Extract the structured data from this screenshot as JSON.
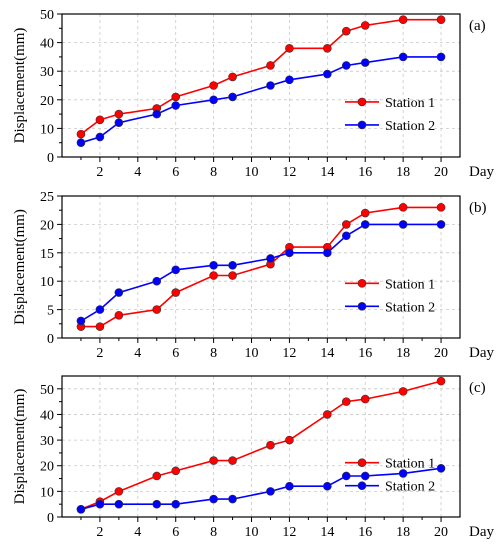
{
  "chart_data": [
    {
      "type": "line",
      "panel_label": "(a)",
      "ylabel": "Displacement(mm)",
      "xlabel": "Day",
      "xlim": [
        0,
        21
      ],
      "ylim": [
        0,
        50
      ],
      "xticks": [
        2,
        4,
        6,
        8,
        10,
        12,
        14,
        16,
        18,
        20
      ],
      "yticks": [
        0,
        10,
        20,
        30,
        40,
        50
      ],
      "grid": true,
      "legend_position": "center-right",
      "series": [
        {
          "name": "Station 1",
          "color": "#ff0000",
          "x": [
            1,
            2,
            3,
            5,
            6,
            8,
            9,
            11,
            12,
            14,
            15,
            16,
            18,
            20
          ],
          "y": [
            8,
            13,
            15,
            17,
            21,
            25,
            28,
            32,
            38,
            38,
            44,
            46,
            48,
            48
          ]
        },
        {
          "name": "Station 2",
          "color": "#0000ff",
          "x": [
            1,
            2,
            3,
            5,
            6,
            8,
            9,
            11,
            12,
            14,
            15,
            16,
            18,
            20
          ],
          "y": [
            5,
            7,
            12,
            15,
            18,
            20,
            21,
            25,
            27,
            29,
            32,
            33,
            35,
            35
          ]
        }
      ]
    },
    {
      "type": "line",
      "panel_label": "(b)",
      "ylabel": "Displacement(mm)",
      "xlabel": "Day",
      "xlim": [
        0,
        21
      ],
      "ylim": [
        0,
        25
      ],
      "xticks": [
        2,
        4,
        6,
        8,
        10,
        12,
        14,
        16,
        18,
        20
      ],
      "yticks": [
        0,
        5,
        10,
        15,
        20,
        25
      ],
      "grid": true,
      "legend_position": "center-right",
      "series": [
        {
          "name": "Station 1",
          "color": "#ff0000",
          "x": [
            1,
            2,
            3,
            5,
            6,
            8,
            9,
            11,
            12,
            14,
            15,
            16,
            18,
            20
          ],
          "y": [
            2,
            2,
            4,
            5,
            8,
            11,
            11,
            13,
            16,
            16,
            20,
            22,
            23,
            23
          ]
        },
        {
          "name": "Station 2",
          "color": "#0000ff",
          "x": [
            1,
            2,
            3,
            5,
            6,
            8,
            9,
            11,
            12,
            14,
            15,
            16,
            18,
            20
          ],
          "y": [
            3,
            5,
            8,
            10,
            12,
            12.8,
            12.8,
            14,
            15,
            15,
            18,
            20,
            20,
            20
          ]
        }
      ]
    },
    {
      "type": "line",
      "panel_label": "(c)",
      "ylabel": "Displacement(mm)",
      "xlabel": "Day",
      "xlim": [
        0,
        21
      ],
      "ylim": [
        0,
        55
      ],
      "xticks": [
        2,
        4,
        6,
        8,
        10,
        12,
        14,
        16,
        18,
        20
      ],
      "yticks": [
        0,
        10,
        20,
        30,
        40,
        50
      ],
      "grid": true,
      "legend_position": "center-right",
      "series": [
        {
          "name": "Station 1",
          "color": "#ff0000",
          "x": [
            1,
            2,
            3,
            5,
            6,
            8,
            9,
            11,
            12,
            14,
            15,
            16,
            18,
            20
          ],
          "y": [
            3,
            6,
            10,
            16,
            18,
            22,
            22,
            28,
            30,
            40,
            45,
            46,
            49,
            53
          ]
        },
        {
          "name": "Station 2",
          "color": "#0000ff",
          "x": [
            1,
            2,
            3,
            5,
            6,
            8,
            9,
            11,
            12,
            14,
            15,
            16,
            18,
            20
          ],
          "y": [
            3,
            5,
            5,
            5,
            5,
            7,
            7,
            10,
            12,
            12,
            16,
            16,
            17,
            19
          ]
        }
      ]
    }
  ]
}
